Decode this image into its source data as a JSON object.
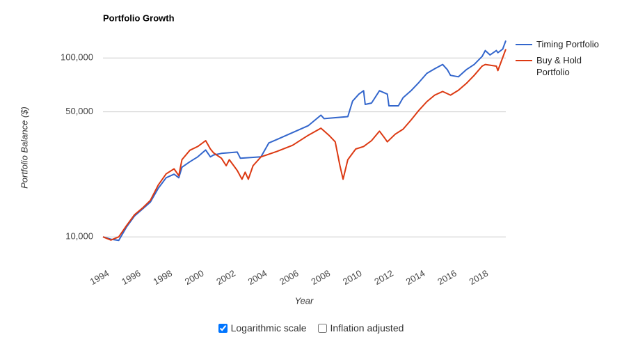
{
  "chart_data": {
    "type": "line",
    "title": "Portfolio Growth",
    "x_label": "Year",
    "y_label": "Portfolio Balance ($)",
    "log_scale": true,
    "grid": true,
    "legend": "right",
    "xlim": [
      1994,
      2019.5
    ],
    "xticks": [
      1994,
      1996,
      1998,
      2000,
      2002,
      2004,
      2006,
      2008,
      2010,
      2012,
      2014,
      2016,
      2018
    ],
    "ylim": [
      9000,
      130000
    ],
    "yticks": [
      {
        "value": 10000,
        "label": "10,000"
      },
      {
        "value": 50000,
        "label": "50,000"
      },
      {
        "value": 100000,
        "label": "100,000"
      }
    ],
    "series": [
      {
        "name": "Timing Portfolio",
        "color": "#3366cc",
        "x": [
          1994.0,
          1994.5,
          1995.0,
          1995.5,
          1996.0,
          1996.5,
          1997.0,
          1997.5,
          1998.0,
          1998.5,
          1998.8,
          1999.0,
          1999.5,
          2000.0,
          2000.5,
          2000.8,
          2001.0,
          2001.5,
          2002.5,
          2002.7,
          2004.0,
          2004.5,
          2005.0,
          2006.0,
          2007.0,
          2007.8,
          2008.0,
          2009.5,
          2009.8,
          2010.2,
          2010.5,
          2010.6,
          2011.0,
          2011.5,
          2012.0,
          2012.1,
          2012.7,
          2013.0,
          2013.5,
          2014.0,
          2014.5,
          2015.0,
          2015.5,
          2015.8,
          2016.0,
          2016.5,
          2017.0,
          2017.5,
          2018.0,
          2018.2,
          2018.5,
          2018.9,
          2019.0,
          2019.3,
          2019.5
        ],
        "values": [
          10000,
          9700,
          9560,
          11400,
          13100,
          14300,
          15650,
          18700,
          21400,
          22400,
          21400,
          24500,
          26300,
          28000,
          30600,
          28000,
          28700,
          29300,
          29800,
          27500,
          28000,
          33500,
          35000,
          38300,
          41900,
          47900,
          45800,
          47000,
          57400,
          62800,
          65600,
          55000,
          56000,
          65600,
          62800,
          54000,
          54000,
          60000,
          65600,
          73000,
          82000,
          87000,
          92000,
          86000,
          80000,
          78500,
          86000,
          92000,
          102000,
          110000,
          104000,
          110000,
          107000,
          112000,
          125000
        ]
      },
      {
        "name": "Buy & Hold Portfolio",
        "color": "#dc3912",
        "x": [
          1994.0,
          1994.5,
          1995.0,
          1995.5,
          1996.0,
          1996.5,
          1997.0,
          1997.5,
          1998.0,
          1998.5,
          1998.8,
          1999.0,
          1999.5,
          2000.0,
          2000.5,
          2000.8,
          2001.0,
          2001.5,
          2001.8,
          2002.0,
          2002.5,
          2002.8,
          2003.0,
          2003.2,
          2003.5,
          2004.0,
          2005.0,
          2006.0,
          2007.0,
          2007.8,
          2008.3,
          2008.7,
          2009.0,
          2009.2,
          2009.5,
          2010.0,
          2010.5,
          2011.0,
          2011.5,
          2011.8,
          2012.0,
          2012.5,
          2013.0,
          2013.5,
          2014.0,
          2014.5,
          2015.0,
          2015.5,
          2016.0,
          2016.5,
          2017.0,
          2017.5,
          2018.0,
          2018.2,
          2018.9,
          2019.0,
          2019.5
        ],
        "values": [
          10000,
          9600,
          10000,
          11600,
          13300,
          14500,
          16000,
          19500,
          22500,
          24000,
          22000,
          27000,
          30500,
          32000,
          34500,
          31000,
          29500,
          27500,
          25000,
          27000,
          23500,
          21000,
          23000,
          21000,
          25000,
          28000,
          30000,
          32500,
          37000,
          40500,
          37000,
          34000,
          25000,
          21000,
          27000,
          31000,
          32000,
          34500,
          39000,
          36000,
          34000,
          37500,
          40000,
          45000,
          51000,
          57000,
          62000,
          65000,
          62000,
          66000,
          72000,
          80000,
          90000,
          92000,
          90000,
          85000,
          112000
        ]
      }
    ]
  },
  "controls": [
    {
      "label": "Logarithmic scale",
      "checked": true
    },
    {
      "label": "Inflation adjusted",
      "checked": false
    }
  ]
}
